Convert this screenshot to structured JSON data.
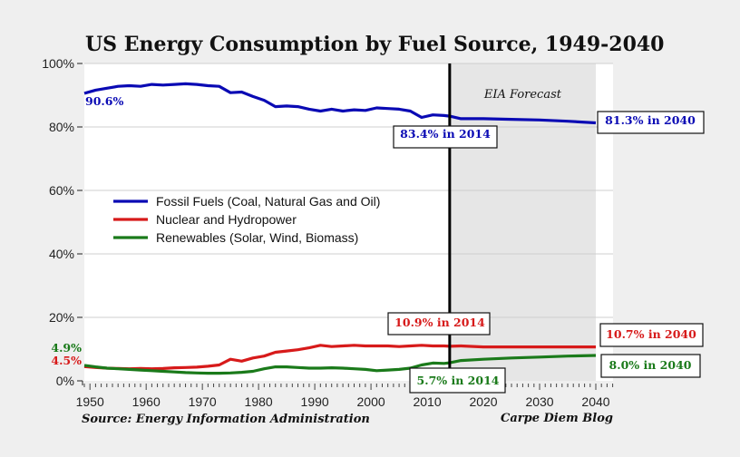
{
  "chart_data": {
    "type": "line",
    "title": "US Energy Consumption by Fuel Source, 1949-2040",
    "xlabel": "",
    "ylabel": "",
    "xlim": [
      1949,
      2040
    ],
    "ylim": [
      0,
      100
    ],
    "grid": true,
    "y_ticks": [
      0,
      20,
      40,
      60,
      80,
      100
    ],
    "y_tick_labels": [
      "0%",
      "20%",
      "40%",
      "60%",
      "80%",
      "100%"
    ],
    "x_ticks": [
      1950,
      1960,
      1970,
      1980,
      1990,
      2000,
      2010,
      2020,
      2030,
      2040
    ],
    "x_tick_labels": [
      "1950",
      "1960",
      "1970",
      "1980",
      "1990",
      "2000",
      "2010",
      "2020",
      "2030",
      "2040"
    ],
    "legend_position": "center-left",
    "forecast_region": {
      "start": 2014,
      "end": 2040,
      "label": "EIA Forecast"
    },
    "divider_year": 2014,
    "series": [
      {
        "name": "Fossil Fuels (Coal, Natural Gas and Oil)",
        "color": "#0a0ab4",
        "x": [
          1949,
          1951,
          1953,
          1955,
          1957,
          1959,
          1961,
          1963,
          1965,
          1967,
          1969,
          1971,
          1973,
          1975,
          1977,
          1979,
          1981,
          1983,
          1985,
          1987,
          1989,
          1991,
          1993,
          1995,
          1997,
          1999,
          2001,
          2003,
          2005,
          2007,
          2009,
          2011,
          2013,
          2014,
          2016,
          2020,
          2025,
          2030,
          2035,
          2040
        ],
        "values": [
          90.6,
          91.6,
          92.2,
          92.8,
          93.0,
          92.8,
          93.4,
          93.2,
          93.4,
          93.6,
          93.4,
          93.0,
          92.8,
          90.8,
          91.0,
          89.6,
          88.4,
          86.4,
          86.6,
          86.4,
          85.6,
          85.0,
          85.6,
          85.0,
          85.4,
          85.2,
          86.0,
          85.8,
          85.6,
          85.0,
          83.0,
          83.8,
          83.6,
          83.4,
          82.6,
          82.6,
          82.4,
          82.2,
          81.8,
          81.3
        ]
      },
      {
        "name": "Nuclear and Hydropower",
        "color": "#d71a1a",
        "x": [
          1949,
          1951,
          1953,
          1955,
          1957,
          1959,
          1961,
          1963,
          1965,
          1967,
          1969,
          1971,
          1973,
          1975,
          1977,
          1979,
          1981,
          1983,
          1985,
          1987,
          1989,
          1991,
          1993,
          1995,
          1997,
          1999,
          2001,
          2003,
          2005,
          2007,
          2009,
          2011,
          2013,
          2014,
          2016,
          2020,
          2025,
          2030,
          2035,
          2040
        ],
        "values": [
          4.5,
          4.2,
          4.0,
          3.9,
          3.8,
          3.9,
          3.8,
          3.9,
          4.1,
          4.2,
          4.3,
          4.6,
          5.0,
          6.8,
          6.2,
          7.2,
          7.8,
          9.0,
          9.4,
          9.8,
          10.4,
          11.2,
          10.8,
          11.0,
          11.2,
          11.0,
          11.0,
          11.0,
          10.8,
          11.0,
          11.2,
          11.0,
          11.0,
          10.9,
          11.0,
          10.7,
          10.7,
          10.7,
          10.7,
          10.7
        ]
      },
      {
        "name": "Renewables (Solar, Wind, Biomass)",
        "color": "#1a7a1a",
        "x": [
          1949,
          1951,
          1953,
          1955,
          1957,
          1959,
          1961,
          1963,
          1965,
          1967,
          1969,
          1971,
          1973,
          1975,
          1977,
          1979,
          1981,
          1983,
          1985,
          1987,
          1989,
          1991,
          1993,
          1995,
          1997,
          1999,
          2001,
          2003,
          2005,
          2007,
          2009,
          2011,
          2013,
          2014,
          2016,
          2020,
          2025,
          2030,
          2035,
          2040
        ],
        "values": [
          4.9,
          4.4,
          4.0,
          3.8,
          3.6,
          3.4,
          3.2,
          3.0,
          2.8,
          2.6,
          2.5,
          2.4,
          2.4,
          2.5,
          2.7,
          3.0,
          3.8,
          4.4,
          4.4,
          4.2,
          4.0,
          4.0,
          4.1,
          4.0,
          3.8,
          3.6,
          3.2,
          3.4,
          3.6,
          4.0,
          5.0,
          5.6,
          5.5,
          5.7,
          6.4,
          6.8,
          7.2,
          7.5,
          7.8,
          8.0
        ]
      }
    ],
    "annotations": [
      {
        "text": "90.6%",
        "series": "Fossil Fuels (Coal, Natural Gas and Oil)",
        "boxed": false
      },
      {
        "text": "83.4% in 2014",
        "series": "Fossil Fuels (Coal, Natural Gas and Oil)",
        "boxed": true
      },
      {
        "text": "81.3% in 2040",
        "series": "Fossil Fuels (Coal, Natural Gas and Oil)",
        "boxed": true
      },
      {
        "text": "4.9%",
        "series": "Renewables (Solar, Wind, Biomass)",
        "boxed": false
      },
      {
        "text": "4.5%",
        "series": "Nuclear and Hydropower",
        "boxed": false
      },
      {
        "text": "10.9% in 2014",
        "series": "Nuclear and Hydropower",
        "boxed": true
      },
      {
        "text": "10.7% in 2040",
        "series": "Nuclear and Hydropower",
        "boxed": true
      },
      {
        "text": "5.7% in 2014",
        "series": "Renewables (Solar, Wind, Biomass)",
        "boxed": true
      },
      {
        "text": "8.0% in 2040",
        "series": "Renewables (Solar, Wind, Biomass)",
        "boxed": true
      }
    ],
    "source": "Source: Energy Information Administration",
    "credit": "Carpe Diem Blog"
  },
  "colors": {
    "background": "#efefef",
    "plot_bg": "#ffffff",
    "forecast_bg": "#e6e6e6",
    "grid": "#cfcfcf"
  }
}
